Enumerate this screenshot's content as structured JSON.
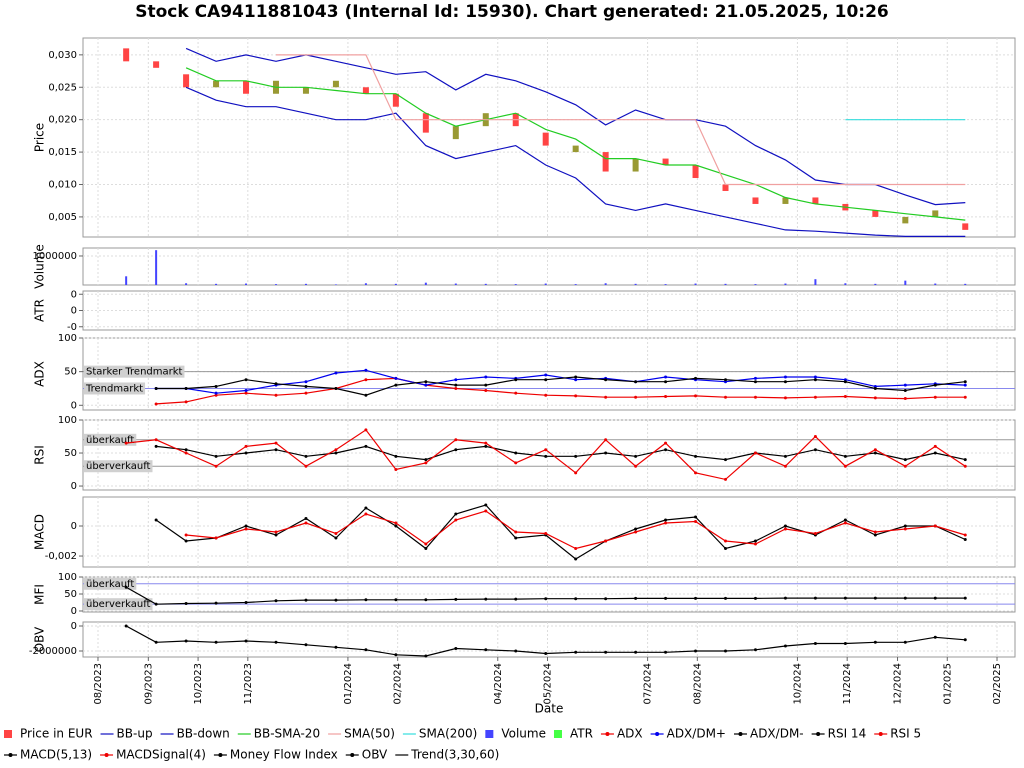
{
  "title": "Stock CA9411881043 (Internal Id: 15930). Chart generated: 21.05.2025, 10:26",
  "xlabel": "Date",
  "x": [
    2023.63,
    2023.68,
    2023.73,
    2023.78,
    2023.83,
    2023.88,
    2023.93,
    2023.98,
    2024.03,
    2024.08,
    2024.13,
    2024.18,
    2024.23,
    2024.28,
    2024.33,
    2024.38,
    2024.43,
    2024.48,
    2024.53,
    2024.58,
    2024.63,
    2024.68,
    2024.73,
    2024.78,
    2024.83,
    2024.88,
    2024.93,
    2024.98,
    2025.03
  ],
  "xlim": [
    2023.558,
    2025.113
  ],
  "xticks": [
    {
      "value": 2023.583,
      "label": "08/2023"
    },
    {
      "value": 2023.667,
      "label": "09/2023"
    },
    {
      "value": 2023.75,
      "label": "10/2023"
    },
    {
      "value": 2023.833,
      "label": "11/2023"
    },
    {
      "value": 2024.0,
      "label": "01/2024"
    },
    {
      "value": 2024.083,
      "label": "02/2024"
    },
    {
      "value": 2024.25,
      "label": "04/2024"
    },
    {
      "value": 2024.333,
      "label": "05/2024"
    },
    {
      "value": 2024.5,
      "label": "07/2024"
    },
    {
      "value": 2024.583,
      "label": "08/2024"
    },
    {
      "value": 2024.75,
      "label": "10/2024"
    },
    {
      "value": 2024.833,
      "label": "11/2024"
    },
    {
      "value": 2024.917,
      "label": "12/2024"
    },
    {
      "value": 2025.0,
      "label": "01/2025"
    },
    {
      "value": 2025.083,
      "label": "02/2025"
    }
  ],
  "chart_data": [
    {
      "type": "candlestick",
      "ylabel": "Price",
      "name": "Price in EUR",
      "color": "#ff4444",
      "up_color": "#999933",
      "grid": true,
      "ylim": [
        0.0019,
        0.0326
      ],
      "yticks": [
        {
          "value": 0.005,
          "label": "0,005"
        },
        {
          "value": 0.01,
          "label": "0,010"
        },
        {
          "value": 0.015,
          "label": "0,015"
        },
        {
          "value": 0.02,
          "label": "0,020"
        },
        {
          "value": 0.025,
          "label": "0,025"
        },
        {
          "value": 0.03,
          "label": "0,030"
        }
      ],
      "open": [
        0.031,
        0.029,
        0.027,
        0.025,
        0.026,
        0.024,
        0.024,
        0.025,
        0.025,
        0.024,
        0.021,
        0.017,
        0.019,
        0.021,
        0.018,
        0.015,
        0.015,
        0.012,
        0.014,
        0.013,
        0.01,
        0.008,
        0.007,
        0.008,
        0.007,
        0.006,
        0.004,
        0.005,
        0.004
      ],
      "close": [
        0.029,
        0.028,
        0.025,
        0.026,
        0.024,
        0.026,
        0.025,
        0.026,
        0.024,
        0.022,
        0.018,
        0.019,
        0.021,
        0.019,
        0.016,
        0.016,
        0.012,
        0.014,
        0.013,
        0.011,
        0.009,
        0.007,
        0.008,
        0.007,
        0.006,
        0.005,
        0.005,
        0.006,
        0.003
      ],
      "series": [
        {
          "name": "BB-up",
          "color": "#1010c0",
          "style": "line",
          "values": [
            null,
            null,
            0.031,
            0.029,
            0.03,
            0.029,
            0.03,
            0.029,
            0.028,
            0.027,
            0.0274,
            0.0246,
            0.027,
            0.026,
            0.0243,
            0.0223,
            0.0192,
            0.0215,
            0.02,
            0.02,
            0.019,
            0.016,
            0.0138,
            0.0107,
            0.01,
            0.01,
            0.0084,
            0.0069,
            0.0072
          ]
        },
        {
          "name": "BB-down",
          "color": "#1010c0",
          "style": "line",
          "values": [
            null,
            null,
            0.025,
            0.023,
            0.022,
            0.022,
            0.021,
            0.02,
            0.02,
            0.021,
            0.016,
            0.014,
            0.015,
            0.016,
            0.013,
            0.011,
            0.007,
            0.006,
            0.007,
            0.006,
            0.005,
            0.004,
            0.003,
            0.0028,
            0.0025,
            0.0022,
            0.002,
            0.002,
            0.002
          ]
        },
        {
          "name": "BB-SMA-20",
          "color": "#22cc22",
          "style": "line",
          "values": [
            null,
            null,
            0.028,
            0.026,
            0.026,
            0.025,
            0.025,
            0.0245,
            0.024,
            0.024,
            0.021,
            0.019,
            0.02,
            0.021,
            0.0185,
            0.017,
            0.014,
            0.014,
            0.013,
            0.013,
            0.0115,
            0.01,
            0.008,
            0.007,
            0.0065,
            0.006,
            0.0055,
            0.005,
            0.0045
          ]
        },
        {
          "name": "SMA(50)",
          "color": "#f0a0a0",
          "style": "line",
          "values": [
            null,
            null,
            null,
            null,
            null,
            0.03,
            0.03,
            0.03,
            0.03,
            0.02,
            0.02,
            0.02,
            0.02,
            0.02,
            0.02,
            0.02,
            0.02,
            0.02,
            0.02,
            0.02,
            0.01,
            0.01,
            0.01,
            0.01,
            0.01,
            0.01,
            0.01,
            0.01,
            0.01
          ]
        },
        {
          "name": "SMA(200)",
          "color": "#33dddd",
          "style": "line",
          "values": [
            null,
            null,
            null,
            null,
            null,
            null,
            null,
            null,
            null,
            null,
            null,
            null,
            null,
            null,
            null,
            null,
            null,
            null,
            null,
            null,
            null,
            null,
            null,
            null,
            0.02,
            0.02,
            0.02,
            0.02,
            0.02
          ]
        }
      ]
    },
    {
      "type": "bar",
      "ylabel": "Volume",
      "grid": true,
      "ylim": [
        0,
        1275000
      ],
      "yticks": [
        1000000
      ],
      "series": [
        {
          "name": "Volume",
          "color": "#4444ff",
          "style": "box",
          "values": [
            300000,
            1200000,
            60000,
            40000,
            50000,
            30000,
            40000,
            20000,
            60000,
            40000,
            80000,
            50000,
            40000,
            30000,
            50000,
            30000,
            60000,
            40000,
            30000,
            50000,
            40000,
            30000,
            50000,
            200000,
            60000,
            40000,
            150000,
            50000,
            40000
          ]
        }
      ]
    },
    {
      "type": "line",
      "ylabel": "ATR",
      "grid": true,
      "ylim": [
        -2e-05,
        0.00022
      ],
      "yticks": [
        {
          "value": 0.0002,
          "label": "0"
        },
        {
          "value": 0.0001,
          "label": "0"
        },
        {
          "value": 0,
          "label": "-0"
        }
      ],
      "series": [
        {
          "name": "ATR",
          "color": "#44ff44",
          "style": "box",
          "values": [
            null,
            null,
            null,
            null,
            null,
            null,
            null,
            null,
            null,
            null,
            null,
            null,
            null,
            null,
            null,
            null,
            null,
            null,
            null,
            null,
            null,
            null,
            null,
            null,
            null,
            null,
            null,
            null,
            null
          ]
        }
      ]
    },
    {
      "type": "line",
      "ylabel": "ADX",
      "grid": true,
      "ylim": [
        -7,
        100
      ],
      "yticks": [
        0,
        50,
        100
      ],
      "levels": [
        {
          "value": 50,
          "label": "Starker Trendmarkt",
          "color": "#999999"
        },
        {
          "value": 25,
          "label": "Trendmarkt",
          "color": "#8888ee"
        }
      ],
      "series": [
        {
          "name": "ADX",
          "color": "#ee0000",
          "style": "dotline",
          "values": [
            null,
            2,
            5,
            15,
            18,
            15,
            18,
            25,
            38,
            40,
            30,
            25,
            22,
            18,
            15,
            14,
            12,
            12,
            13,
            14,
            12,
            12,
            11,
            12,
            13,
            11,
            10,
            12,
            12
          ]
        },
        {
          "name": "ADX/DM+",
          "color": "#0000ee",
          "style": "dotline",
          "values": [
            null,
            25,
            25,
            18,
            22,
            30,
            35,
            48,
            52,
            40,
            30,
            38,
            42,
            40,
            45,
            38,
            40,
            35,
            42,
            38,
            35,
            40,
            42,
            42,
            38,
            28,
            30,
            32,
            30
          ]
        },
        {
          "name": "ADX/DM-",
          "color": "#000000",
          "style": "dotline",
          "values": [
            null,
            25,
            25,
            28,
            38,
            32,
            28,
            25,
            15,
            30,
            35,
            30,
            30,
            38,
            38,
            42,
            38,
            35,
            35,
            40,
            38,
            35,
            35,
            38,
            35,
            25,
            22,
            30,
            35
          ]
        }
      ]
    },
    {
      "type": "line",
      "ylabel": "RSI",
      "grid": true,
      "ylim": [
        -6,
        100
      ],
      "yticks": [
        0,
        50,
        100
      ],
      "levels": [
        {
          "value": 70,
          "label": "überkauft",
          "color": "#999999"
        },
        {
          "value": 30,
          "label": "überverkauft",
          "color": "#999999"
        }
      ],
      "series": [
        {
          "name": "RSI 14",
          "color": "#000000",
          "style": "dotline",
          "values": [
            null,
            60,
            55,
            45,
            50,
            55,
            45,
            50,
            60,
            45,
            40,
            55,
            60,
            50,
            45,
            45,
            50,
            45,
            55,
            45,
            40,
            50,
            45,
            55,
            45,
            50,
            40,
            50,
            40
          ]
        },
        {
          "name": "RSI 5",
          "color": "#ee0000",
          "style": "dotline",
          "values": [
            65,
            70,
            50,
            30,
            60,
            65,
            30,
            55,
            85,
            25,
            35,
            70,
            65,
            35,
            55,
            20,
            70,
            30,
            65,
            20,
            10,
            50,
            30,
            75,
            30,
            55,
            30,
            60,
            30
          ]
        }
      ]
    },
    {
      "type": "line",
      "ylabel": "MACD",
      "grid": true,
      "ylim": [
        -0.00273,
        0.00193
      ],
      "yticks": [
        {
          "value": -0.002,
          "label": "-0,002"
        },
        0
      ],
      "series": [
        {
          "name": "MACD(5,13)",
          "color": "#000000",
          "style": "dotline",
          "values": [
            null,
            0.0004,
            -0.001,
            -0.0008,
            0,
            -0.0006,
            0.0005,
            -0.0008,
            0.0012,
            0,
            -0.0015,
            0.0008,
            0.0014,
            -0.0008,
            -0.0006,
            -0.0022,
            -0.001,
            -0.0002,
            0.0004,
            0.0006,
            -0.0015,
            -0.001,
            0,
            -0.0006,
            0.0004,
            -0.0006,
            0,
            0,
            -0.0009
          ]
        },
        {
          "name": "MACDSignal(4)",
          "color": "#ee0000",
          "style": "dotline",
          "values": [
            null,
            null,
            -0.0006,
            -0.0008,
            -0.0002,
            -0.0004,
            0.0002,
            -0.0005,
            0.0008,
            0.0002,
            -0.0012,
            0.0004,
            0.001,
            -0.0004,
            -0.0005,
            -0.0015,
            -0.001,
            -0.0004,
            0.0002,
            0.0003,
            -0.001,
            -0.0012,
            -0.0002,
            -0.0005,
            0.0002,
            -0.0004,
            -0.0002,
            0,
            -0.0006
          ]
        }
      ]
    },
    {
      "type": "line",
      "ylabel": "MFI",
      "grid": true,
      "ylim": [
        -3,
        100
      ],
      "yticks": [
        0,
        50,
        100
      ],
      "levels": [
        {
          "value": 80,
          "label": "überkauft",
          "color": "#8888ee"
        },
        {
          "value": 20,
          "label": "überverkauft",
          "color": "#8888ee"
        }
      ],
      "series": [
        {
          "name": "Money Flow Index",
          "color": "#000000",
          "style": "dotline",
          "values": [
            70,
            20,
            22,
            23,
            25,
            30,
            32,
            32,
            33,
            33,
            33,
            34,
            35,
            35,
            36,
            36,
            36,
            37,
            37,
            37,
            37,
            37,
            38,
            38,
            38,
            38,
            38,
            38,
            38
          ]
        }
      ]
    },
    {
      "type": "line",
      "ylabel": "OBV",
      "grid": true,
      "ylim": [
        -2480000,
        320000
      ],
      "yticks": [
        -2000000,
        0
      ],
      "series": [
        {
          "name": "OBV",
          "color": "#000000",
          "style": "dotline",
          "values": [
            0,
            -1300000,
            -1200000,
            -1300000,
            -1200000,
            -1300000,
            -1500000,
            -1700000,
            -1900000,
            -2300000,
            -2400000,
            -1800000,
            -1900000,
            -2000000,
            -2200000,
            -2100000,
            -2100000,
            -2100000,
            -2100000,
            -2000000,
            -2000000,
            -1900000,
            -1600000,
            -1400000,
            -1400000,
            -1300000,
            -1300000,
            -900000,
            -1100000
          ]
        },
        {
          "name": "Trend(3,30,60)",
          "color": "#000000",
          "style": "line",
          "values": [
            null,
            null,
            null,
            null,
            null,
            null,
            null,
            null,
            null,
            null,
            null,
            null,
            null,
            null,
            null,
            null,
            null,
            null,
            null,
            null,
            null,
            null,
            null,
            null,
            null,
            null,
            null,
            null,
            null
          ]
        }
      ]
    }
  ]
}
